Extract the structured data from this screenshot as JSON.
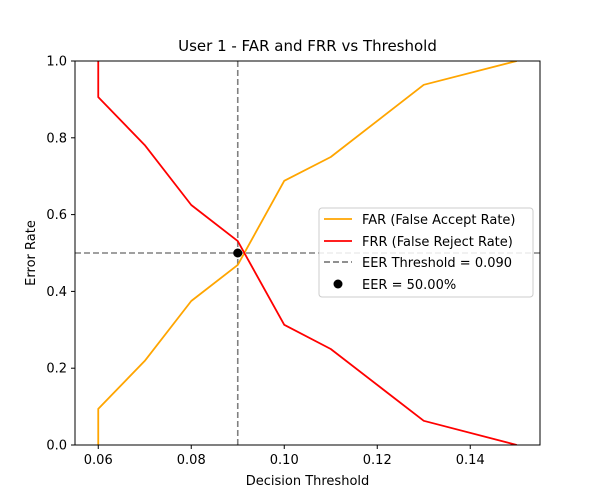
{
  "chart_data": {
    "type": "line",
    "title": "User 1 - FAR and FRR vs Threshold",
    "xlabel": "Decision Threshold",
    "ylabel": "Error Rate",
    "xlim": [
      0.055,
      0.155
    ],
    "ylim": [
      0.0,
      1.0
    ],
    "xticks": [
      "0.06",
      "0.08",
      "0.10",
      "0.12",
      "0.14"
    ],
    "yticks": [
      "0.0",
      "0.2",
      "0.4",
      "0.6",
      "0.8",
      "1.0"
    ],
    "grid": false,
    "legend_position": "center-right",
    "series": [
      {
        "name": "FAR (False Accept Rate)",
        "color": "#ffa500",
        "x": [
          0.06,
          0.06,
          0.07,
          0.08,
          0.09,
          0.1,
          0.11,
          0.13,
          0.15
        ],
        "y": [
          0.0,
          0.094,
          0.219,
          0.375,
          0.469,
          0.688,
          0.75,
          0.938,
          1.0
        ]
      },
      {
        "name": "FRR (False Reject Rate)",
        "color": "#ff0000",
        "x": [
          0.06,
          0.06,
          0.07,
          0.08,
          0.09,
          0.1,
          0.11,
          0.13,
          0.15
        ],
        "y": [
          1.0,
          0.906,
          0.781,
          0.625,
          0.531,
          0.313,
          0.25,
          0.063,
          0.0
        ]
      }
    ],
    "eer_threshold": {
      "label": "EER Threshold = 0.090",
      "color": "#808080",
      "x": 0.09,
      "y": 0.5
    },
    "eer_point": {
      "label": "EER = 50.00%",
      "color": "#000000",
      "x": 0.09,
      "y": 0.5
    }
  }
}
